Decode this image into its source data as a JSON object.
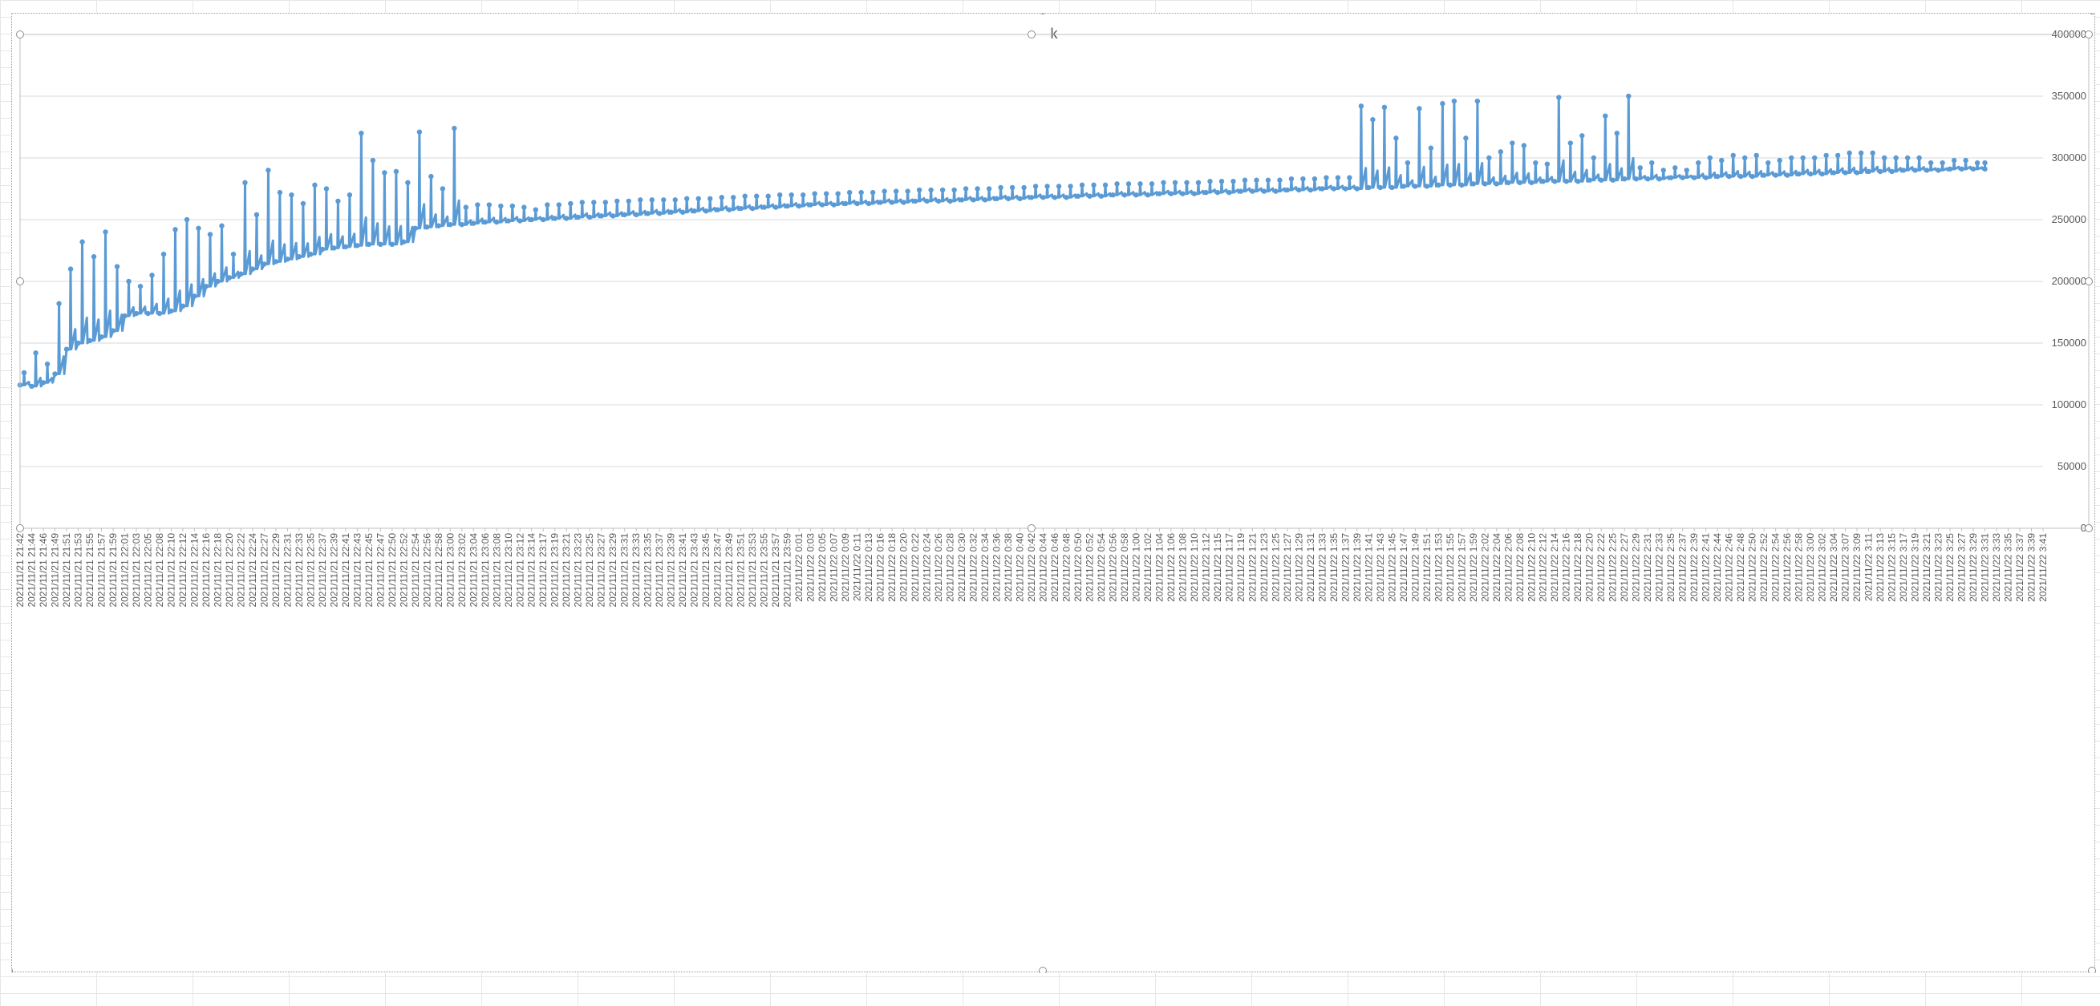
{
  "chart_data": {
    "type": "line",
    "title": "k",
    "xlabel": "",
    "ylabel": "",
    "ylim": [
      0,
      400000
    ],
    "y_ticks": [
      0,
      50000,
      100000,
      150000,
      200000,
      250000,
      300000,
      350000,
      400000
    ],
    "x_start_label_time": "2021/11/21 21:42",
    "x_end_label_time": "2021/11/22 3:41",
    "x_label_step_minutes": 2,
    "x_tick_labels": [
      "2021/11/21 21:42",
      "2021/11/21 21:44",
      "2021/11/21 21:46",
      "2021/11/21 21:49",
      "2021/11/21 21:51",
      "2021/11/21 21:53",
      "2021/11/21 21:55",
      "2021/11/21 21:57",
      "2021/11/21 21:59",
      "2021/11/21 22:01",
      "2021/11/21 22:03",
      "2021/11/21 22:05",
      "2021/11/21 22:08",
      "2021/11/21 22:10",
      "2021/11/21 22:12",
      "2021/11/21 22:14",
      "2021/11/21 22:16",
      "2021/11/21 22:18",
      "2021/11/21 22:20",
      "2021/11/21 22:22",
      "2021/11/21 22:24",
      "2021/11/21 22:27",
      "2021/11/21 22:29",
      "2021/11/21 22:31",
      "2021/11/21 22:33",
      "2021/11/21 22:35",
      "2021/11/21 22:37",
      "2021/11/21 22:39",
      "2021/11/21 22:41",
      "2021/11/21 22:43",
      "2021/11/21 22:45",
      "2021/11/21 22:47",
      "2021/11/21 22:50",
      "2021/11/21 22:52",
      "2021/11/21 22:54",
      "2021/11/21 22:56",
      "2021/11/21 22:58",
      "2021/11/21 23:00",
      "2021/11/21 23:02",
      "2021/11/21 23:04",
      "2021/11/21 23:06",
      "2021/11/21 23:08",
      "2021/11/21 23:10",
      "2021/11/21 23:12",
      "2021/11/21 23:14",
      "2021/11/21 23:17",
      "2021/11/21 23:19",
      "2021/11/21 23:21",
      "2021/11/21 23:23",
      "2021/11/21 23:25",
      "2021/11/21 23:27",
      "2021/11/21 23:29",
      "2021/11/21 23:31",
      "2021/11/21 23:33",
      "2021/11/21 23:35",
      "2021/11/21 23:37",
      "2021/11/21 23:39",
      "2021/11/21 23:41",
      "2021/11/21 23:43",
      "2021/11/21 23:45",
      "2021/11/21 23:47",
      "2021/11/21 23:49",
      "2021/11/21 23:51",
      "2021/11/21 23:53",
      "2021/11/21 23:55",
      "2021/11/21 23:57",
      "2021/11/21 23:59",
      "2021/11/22 0:01",
      "2021/11/22 0:03",
      "2021/11/22 0:05",
      "2021/11/22 0:07",
      "2021/11/22 0:09",
      "2021/11/22 0:11",
      "2021/11/22 0:13",
      "2021/11/22 0:16",
      "2021/11/22 0:18",
      "2021/11/22 0:20",
      "2021/11/22 0:22",
      "2021/11/22 0:24",
      "2021/11/22 0:26",
      "2021/11/22 0:28",
      "2021/11/22 0:30",
      "2021/11/22 0:32",
      "2021/11/22 0:34",
      "2021/11/22 0:36",
      "2021/11/22 0:38",
      "2021/11/22 0:40",
      "2021/11/22 0:42",
      "2021/11/22 0:44",
      "2021/11/22 0:46",
      "2021/11/22 0:48",
      "2021/11/22 0:50",
      "2021/11/22 0:52",
      "2021/11/22 0:54",
      "2021/11/22 0:56",
      "2021/11/22 0:58",
      "2021/11/22 1:00",
      "2021/11/22 1:02",
      "2021/11/22 1:04",
      "2021/11/22 1:06",
      "2021/11/22 1:08",
      "2021/11/22 1:10",
      "2021/11/22 1:12",
      "2021/11/22 1:15",
      "2021/11/22 1:17",
      "2021/11/22 1:19",
      "2021/11/22 1:21",
      "2021/11/22 1:23",
      "2021/11/22 1:25",
      "2021/11/22 1:27",
      "2021/11/22 1:29",
      "2021/11/22 1:31",
      "2021/11/22 1:33",
      "2021/11/22 1:35",
      "2021/11/22 1:37",
      "2021/11/22 1:39",
      "2021/11/22 1:41",
      "2021/11/22 1:43",
      "2021/11/22 1:45",
      "2021/11/22 1:47",
      "2021/11/22 1:49",
      "2021/11/22 1:51",
      "2021/11/22 1:53",
      "2021/11/22 1:55",
      "2021/11/22 1:57",
      "2021/11/22 1:59",
      "2021/11/22 2:02",
      "2021/11/22 2:04",
      "2021/11/22 2:06",
      "2021/11/22 2:08",
      "2021/11/22 2:10",
      "2021/11/22 2:12",
      "2021/11/22 2:14",
      "2021/11/22 2:16",
      "2021/11/22 2:18",
      "2021/11/22 2:20",
      "2021/11/22 2:22",
      "2021/11/22 2:25",
      "2021/11/22 2:27",
      "2021/11/22 2:29",
      "2021/11/22 2:31",
      "2021/11/22 2:33",
      "2021/11/22 2:35",
      "2021/11/22 2:37",
      "2021/11/22 2:39",
      "2021/11/22 2:41",
      "2021/11/22 2:44",
      "2021/11/22 2:46",
      "2021/11/22 2:48",
      "2021/11/22 2:50",
      "2021/11/22 2:52",
      "2021/11/22 2:54",
      "2021/11/22 2:56",
      "2021/11/22 2:58",
      "2021/11/22 3:00",
      "2021/11/22 3:02",
      "2021/11/22 3:04",
      "2021/11/22 3:07",
      "2021/11/22 3:09",
      "2021/11/22 3:11",
      "2021/11/22 3:13",
      "2021/11/22 3:15",
      "2021/11/22 3:17",
      "2021/11/22 3:19",
      "2021/11/22 3:21",
      "2021/11/22 3:23",
      "2021/11/22 3:25",
      "2021/11/22 3:27",
      "2021/11/22 3:29",
      "2021/11/22 3:31",
      "2021/11/22 3:33",
      "2021/11/22 3:35",
      "2021/11/22 3:37",
      "2021/11/22 3:39",
      "2021/11/22 3:41"
    ],
    "grid": true,
    "legend": "none",
    "y_axis_side": "right",
    "series": [
      {
        "color": "#5b9bd5",
        "x": [
          "2021/11/21 21:42",
          "2021/11/21 21:44",
          "2021/11/21 21:46",
          "2021/11/21 21:49",
          "2021/11/21 21:51",
          "2021/11/21 21:53",
          "2021/11/21 21:55",
          "2021/11/21 21:57",
          "2021/11/21 21:59",
          "2021/11/21 22:01",
          "2021/11/21 22:03",
          "2021/11/21 22:05",
          "2021/11/21 22:08",
          "2021/11/21 22:10",
          "2021/11/21 22:12",
          "2021/11/21 22:14",
          "2021/11/21 22:16",
          "2021/11/21 22:18",
          "2021/11/21 22:20",
          "2021/11/21 22:22",
          "2021/11/21 22:24",
          "2021/11/21 22:27",
          "2021/11/21 22:29",
          "2021/11/21 22:31",
          "2021/11/21 22:33",
          "2021/11/21 22:35",
          "2021/11/21 22:37",
          "2021/11/21 22:39",
          "2021/11/21 22:41",
          "2021/11/21 22:43",
          "2021/11/21 22:45",
          "2021/11/21 22:47",
          "2021/11/21 22:50",
          "2021/11/21 22:52",
          "2021/11/21 22:54",
          "2021/11/21 22:56",
          "2021/11/21 22:58",
          "2021/11/21 23:00",
          "2021/11/21 23:02",
          "2021/11/21 23:04",
          "2021/11/21 23:06",
          "2021/11/21 23:08",
          "2021/11/21 23:10",
          "2021/11/21 23:12",
          "2021/11/21 23:14",
          "2021/11/21 23:17",
          "2021/11/21 23:19",
          "2021/11/21 23:21",
          "2021/11/21 23:23",
          "2021/11/21 23:25",
          "2021/11/21 23:27",
          "2021/11/21 23:29",
          "2021/11/21 23:31",
          "2021/11/21 23:33",
          "2021/11/21 23:35",
          "2021/11/21 23:37",
          "2021/11/21 23:39",
          "2021/11/21 23:41",
          "2021/11/21 23:43",
          "2021/11/21 23:45",
          "2021/11/21 23:47",
          "2021/11/21 23:49",
          "2021/11/21 23:51",
          "2021/11/21 23:53",
          "2021/11/21 23:55",
          "2021/11/21 23:57",
          "2021/11/21 23:59",
          "2021/11/22 0:01",
          "2021/11/22 0:03",
          "2021/11/22 0:05",
          "2021/11/22 0:07",
          "2021/11/22 0:09",
          "2021/11/22 0:11",
          "2021/11/22 0:13",
          "2021/11/22 0:16",
          "2021/11/22 0:18",
          "2021/11/22 0:20",
          "2021/11/22 0:22",
          "2021/11/22 0:24",
          "2021/11/22 0:26",
          "2021/11/22 0:28",
          "2021/11/22 0:30",
          "2021/11/22 0:32",
          "2021/11/22 0:34",
          "2021/11/22 0:36",
          "2021/11/22 0:38",
          "2021/11/22 0:40",
          "2021/11/22 0:42",
          "2021/11/22 0:44",
          "2021/11/22 0:46",
          "2021/11/22 0:48",
          "2021/11/22 0:50",
          "2021/11/22 0:52",
          "2021/11/22 0:54",
          "2021/11/22 0:56",
          "2021/11/22 0:58",
          "2021/11/22 1:00",
          "2021/11/22 1:02",
          "2021/11/22 1:04",
          "2021/11/22 1:06",
          "2021/11/22 1:08",
          "2021/11/22 1:10",
          "2021/11/22 1:12",
          "2021/11/22 1:15",
          "2021/11/22 1:17",
          "2021/11/22 1:19",
          "2021/11/22 1:21",
          "2021/11/22 1:23",
          "2021/11/22 1:25",
          "2021/11/22 1:27",
          "2021/11/22 1:29",
          "2021/11/22 1:31",
          "2021/11/22 1:33",
          "2021/11/22 1:35",
          "2021/11/22 1:37",
          "2021/11/22 1:39",
          "2021/11/22 1:41",
          "2021/11/22 1:43",
          "2021/11/22 1:45",
          "2021/11/22 1:47",
          "2021/11/22 1:49",
          "2021/11/22 1:51",
          "2021/11/22 1:53",
          "2021/11/22 1:55",
          "2021/11/22 1:57",
          "2021/11/22 1:59",
          "2021/11/22 2:02",
          "2021/11/22 2:04",
          "2021/11/22 2:06",
          "2021/11/22 2:08",
          "2021/11/22 2:10",
          "2021/11/22 2:12",
          "2021/11/22 2:14",
          "2021/11/22 2:16",
          "2021/11/22 2:18",
          "2021/11/22 2:20",
          "2021/11/22 2:22",
          "2021/11/22 2:25",
          "2021/11/22 2:27",
          "2021/11/22 2:29",
          "2021/11/22 2:31",
          "2021/11/22 2:33",
          "2021/11/22 2:35",
          "2021/11/22 2:37",
          "2021/11/22 2:39",
          "2021/11/22 2:41",
          "2021/11/22 2:44",
          "2021/11/22 2:46",
          "2021/11/22 2:48",
          "2021/11/22 2:50",
          "2021/11/22 2:52",
          "2021/11/22 2:54",
          "2021/11/22 2:56",
          "2021/11/22 2:58",
          "2021/11/22 3:00",
          "2021/11/22 3:02",
          "2021/11/22 3:04",
          "2021/11/22 3:07",
          "2021/11/22 3:09",
          "2021/11/22 3:11",
          "2021/11/22 3:13",
          "2021/11/22 3:15",
          "2021/11/22 3:17",
          "2021/11/22 3:19",
          "2021/11/22 3:21",
          "2021/11/22 3:23",
          "2021/11/22 3:25",
          "2021/11/22 3:27",
          "2021/11/22 3:29",
          "2021/11/22 3:31",
          "2021/11/22 3:33",
          "2021/11/22 3:35",
          "2021/11/22 3:37",
          "2021/11/22 3:39",
          "2021/11/22 3:41"
        ],
        "baseline": [
          116000,
          115000,
          118000,
          125000,
          145000,
          150000,
          152000,
          155000,
          160000,
          172000,
          174000,
          174000,
          174000,
          176000,
          180000,
          188000,
          196000,
          200000,
          203000,
          206000,
          210000,
          214000,
          216000,
          218000,
          220000,
          222000,
          226000,
          227000,
          228000,
          229000,
          230000,
          230000,
          230000,
          232000,
          243000,
          244000,
          245000,
          246000,
          246000,
          247000,
          248000,
          248000,
          249000,
          249000,
          250000,
          250000,
          251000,
          251000,
          252000,
          252000,
          253000,
          253000,
          254000,
          254000,
          255000,
          255000,
          256000,
          256000,
          257000,
          257000,
          258000,
          258000,
          259000,
          259000,
          260000,
          260000,
          261000,
          261000,
          262000,
          262000,
          262000,
          263000,
          263000,
          263000,
          264000,
          264000,
          264000,
          265000,
          265000,
          265000,
          265000,
          266000,
          266000,
          266000,
          267000,
          267000,
          267000,
          268000,
          268000,
          268000,
          268000,
          269000,
          269000,
          269000,
          270000,
          270000,
          270000,
          270000,
          271000,
          271000,
          271000,
          271000,
          272000,
          272000,
          272000,
          273000,
          273000,
          273000,
          273000,
          274000,
          274000,
          274000,
          275000,
          275000,
          275000,
          275000,
          276000,
          276000,
          276000,
          277000,
          277000,
          277000,
          278000,
          278000,
          278000,
          279000,
          279000,
          279000,
          280000,
          280000,
          280000,
          281000,
          281000,
          281000,
          281000,
          282000,
          282000,
          282000,
          283000,
          283000,
          283000,
          283000,
          284000,
          284000,
          284000,
          284000,
          285000,
          285000,
          285000,
          285000,
          286000,
          286000,
          286000,
          287000,
          287000,
          287000,
          288000,
          288000,
          288000,
          289000,
          289000,
          289000,
          290000,
          290000,
          290000,
          290000,
          291000,
          291000,
          291000,
          291000
        ],
        "peaks": [
          126000,
          142000,
          133000,
          182000,
          210000,
          232000,
          220000,
          240000,
          212000,
          200000,
          196000,
          205000,
          222000,
          242000,
          250000,
          243000,
          238000,
          245000,
          222000,
          280000,
          254000,
          290000,
          272000,
          270000,
          263000,
          278000,
          275000,
          265000,
          270000,
          320000,
          298000,
          288000,
          289000,
          280000,
          321000,
          285000,
          275000,
          324000,
          260000,
          262000,
          262000,
          261000,
          261000,
          260000,
          258000,
          262000,
          262000,
          263000,
          264000,
          264000,
          264000,
          265000,
          265000,
          266000,
          266000,
          266000,
          266000,
          267000,
          267000,
          267000,
          268000,
          268000,
          269000,
          269000,
          269000,
          270000,
          270000,
          270000,
          271000,
          271000,
          271000,
          272000,
          272000,
          272000,
          273000,
          273000,
          273000,
          274000,
          274000,
          274000,
          274000,
          275000,
          275000,
          275000,
          276000,
          276000,
          276000,
          277000,
          277000,
          277000,
          277000,
          278000,
          278000,
          278000,
          279000,
          279000,
          279000,
          279000,
          280000,
          280000,
          280000,
          280000,
          281000,
          281000,
          281000,
          282000,
          282000,
          282000,
          282000,
          283000,
          283000,
          283000,
          284000,
          284000,
          284000,
          342000,
          331000,
          341000,
          316000,
          296000,
          340000,
          308000,
          344000,
          346000,
          316000,
          346000,
          300000,
          305000,
          312000,
          310000,
          296000,
          295000,
          349000,
          312000,
          318000,
          300000,
          334000,
          320000,
          350000,
          292000,
          296000,
          290000,
          292000,
          290000,
          296000,
          300000,
          298000,
          302000,
          300000,
          302000,
          296000,
          298000,
          300000,
          300000,
          300000,
          302000,
          302000,
          304000,
          304000,
          304000,
          300000,
          300000,
          300000,
          300000,
          296000,
          296000,
          298000,
          298000,
          296000,
          296000
        ]
      }
    ]
  }
}
